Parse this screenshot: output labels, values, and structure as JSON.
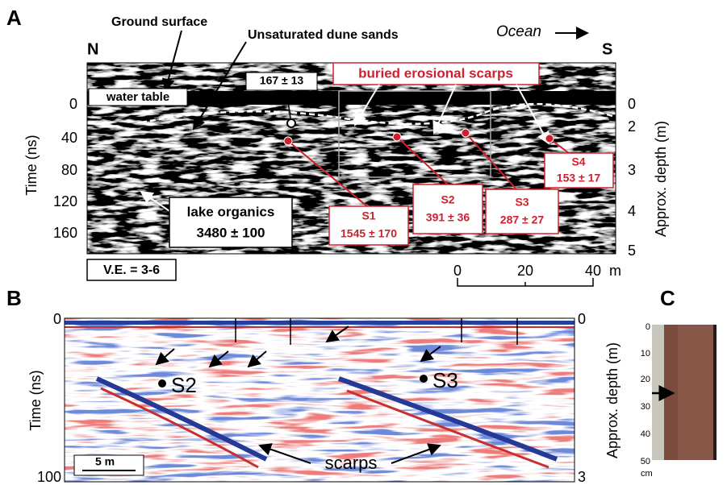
{
  "panel_a": {
    "label": "A",
    "north": "N",
    "south": "S",
    "direction": "Ocean",
    "annotations": {
      "ground_surface": "Ground surface",
      "dune_sands": "Unsaturated dune sands",
      "water_table": "water table",
      "date_water": "167 ± 13",
      "scarps": "buried erosional scarps",
      "lake_organics": "lake organics",
      "lake_date": "3480 ± 100",
      "vertical_exaggeration": "V.E. = 3-6"
    },
    "samples": [
      {
        "name": "S1",
        "age": "1545 ± 170"
      },
      {
        "name": "S2",
        "age": "391 ± 36"
      },
      {
        "name": "S3",
        "age": "287 ± 27"
      },
      {
        "name": "S4",
        "age": "153 ± 17"
      }
    ],
    "time_axis": {
      "title": "Time (ns)",
      "ticks": [
        0,
        40,
        80,
        120,
        160
      ]
    },
    "depth_axis": {
      "title": "Approx. depth (m)",
      "ticks": [
        0,
        2,
        3,
        4,
        5
      ]
    },
    "scale_bar": {
      "ticks": [
        0,
        20,
        40
      ],
      "unit": "m"
    }
  },
  "panel_b": {
    "label": "B",
    "samples": [
      "S2",
      "S3"
    ],
    "scarps": "scarps",
    "scale": "5 m",
    "time_axis": {
      "title": "Time (ns)",
      "ticks": [
        0,
        100
      ]
    },
    "depth_axis": {
      "title": "Approx. depth (m)",
      "ticks": [
        0,
        3
      ]
    }
  },
  "panel_c": {
    "label": "C",
    "ticks": [
      0,
      10,
      20,
      30,
      40,
      50
    ],
    "unit": "cm"
  }
}
